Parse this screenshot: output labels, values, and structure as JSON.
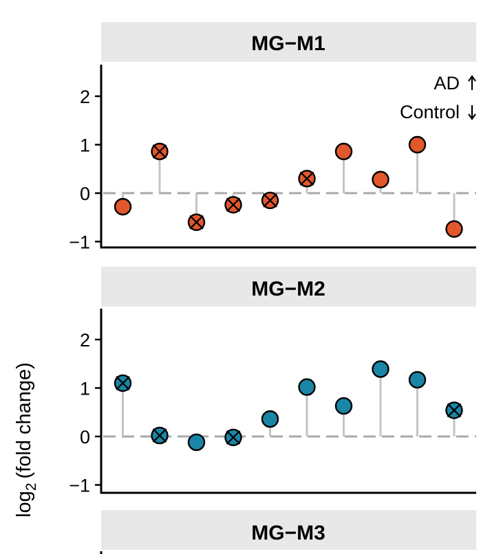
{
  "chart_data": {
    "type": "lollipop",
    "ylabel_prefix": "log",
    "ylabel_subscript": "2",
    "ylabel_suffix": "(fold change)",
    "legend": {
      "up_label": "AD",
      "down_label": "Control"
    },
    "colors": {
      "strip_bg": "#e8e8e8",
      "zero_line": "#a8a8a8",
      "stem": "#c4c4c4",
      "M1": "#e2572c",
      "M2": "#1a86a6",
      "M3": "#3fae7e"
    },
    "panels": [
      {
        "id": "M1",
        "title": "MG−M1",
        "color_key": "M1",
        "yticks": [
          -1,
          0,
          1,
          2
        ],
        "ytick_labels": [
          "−1",
          "0",
          "1",
          "2"
        ],
        "ylim": [
          -1.1,
          2.65
        ],
        "points": [
          {
            "value": -0.28,
            "crossed": false
          },
          {
            "value": 0.86,
            "crossed": true
          },
          {
            "value": -0.6,
            "crossed": true
          },
          {
            "value": -0.24,
            "crossed": true
          },
          {
            "value": -0.15,
            "crossed": true
          },
          {
            "value": 0.3,
            "crossed": true
          },
          {
            "value": 0.86,
            "crossed": false
          },
          {
            "value": 0.28,
            "crossed": false
          },
          {
            "value": 1.0,
            "crossed": false
          },
          {
            "value": -0.74,
            "crossed": false
          }
        ]
      },
      {
        "id": "M2",
        "title": "MG−M2",
        "color_key": "M2",
        "yticks": [
          -1,
          0,
          1,
          2
        ],
        "ytick_labels": [
          "−1",
          "0",
          "1",
          "2"
        ],
        "ylim": [
          -1.1,
          2.65
        ],
        "points": [
          {
            "value": 1.1,
            "crossed": true
          },
          {
            "value": 0.02,
            "crossed": true
          },
          {
            "value": -0.12,
            "crossed": false
          },
          {
            "value": -0.02,
            "crossed": true
          },
          {
            "value": 0.36,
            "crossed": false
          },
          {
            "value": 1.02,
            "crossed": false
          },
          {
            "value": 0.63,
            "crossed": false
          },
          {
            "value": 1.39,
            "crossed": false
          },
          {
            "value": 1.17,
            "crossed": false
          },
          {
            "value": 0.54,
            "crossed": true
          }
        ]
      },
      {
        "id": "M3",
        "title": "MG−M3",
        "color_key": "M3",
        "points": []
      }
    ]
  }
}
